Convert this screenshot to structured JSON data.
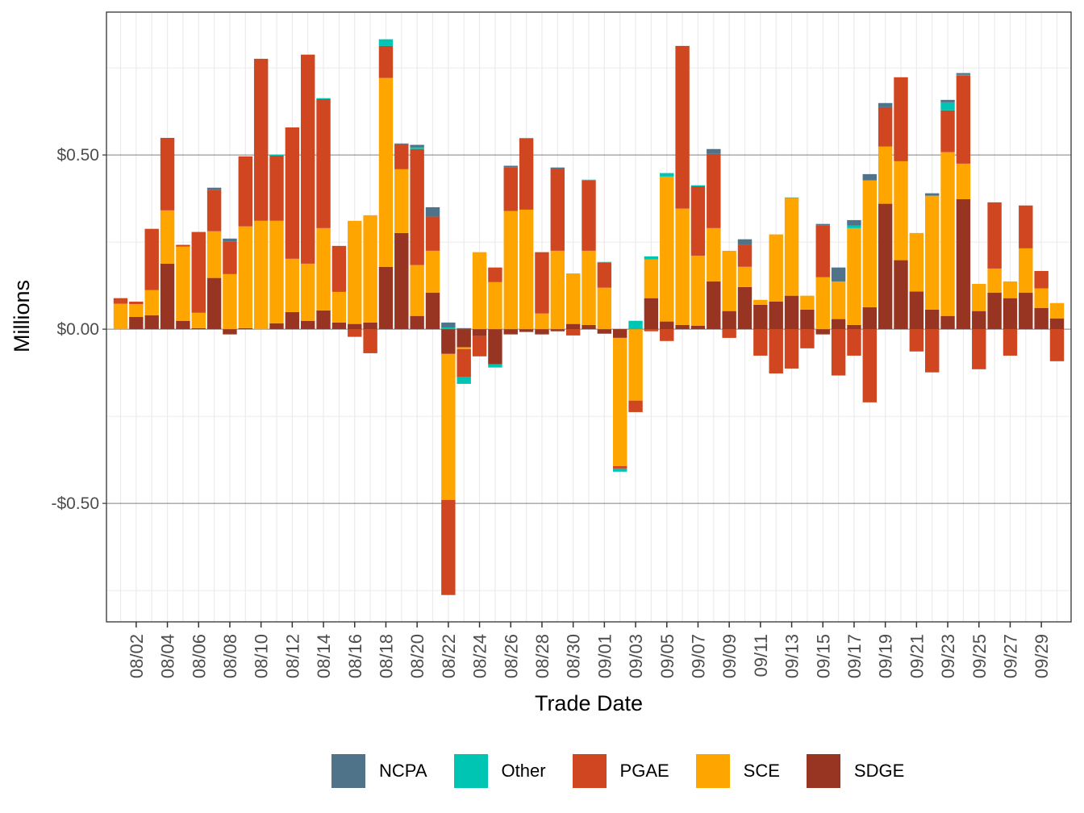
{
  "chart_data": {
    "type": "bar",
    "stacked": true,
    "xlabel": "Trade Date",
    "ylabel": "Millions",
    "ylim": [
      -0.84,
      0.91
    ],
    "yticks": [
      -0.5,
      0.0,
      0.5
    ],
    "ytick_labels": [
      "-$0.50",
      "$0.00",
      "$0.50"
    ],
    "grid": true,
    "legend_position": "bottom",
    "categories": [
      "08/01",
      "08/02",
      "08/03",
      "08/04",
      "08/05",
      "08/06",
      "08/07",
      "08/08",
      "08/09",
      "08/10",
      "08/11",
      "08/12",
      "08/13",
      "08/14",
      "08/15",
      "08/16",
      "08/17",
      "08/18",
      "08/19",
      "08/20",
      "08/21",
      "08/22",
      "08/23",
      "08/24",
      "08/25",
      "08/26",
      "08/27",
      "08/28",
      "08/29",
      "08/30",
      "08/31",
      "09/01",
      "09/02",
      "09/03",
      "09/04",
      "09/05",
      "09/06",
      "09/07",
      "09/08",
      "09/09",
      "09/10",
      "09/11",
      "09/12",
      "09/13",
      "09/14",
      "09/15",
      "09/16",
      "09/17",
      "09/18",
      "09/19",
      "09/20",
      "09/21",
      "09/22",
      "09/23",
      "09/24",
      "09/25",
      "09/26",
      "09/27",
      "09/28",
      "09/29",
      "09/30"
    ],
    "xtick_labels": [
      "08/02",
      "08/04",
      "08/06",
      "08/08",
      "08/10",
      "08/12",
      "08/14",
      "08/16",
      "08/18",
      "08/20",
      "08/22",
      "08/24",
      "08/26",
      "08/28",
      "08/30",
      "09/01",
      "09/03",
      "09/05",
      "09/07",
      "09/09",
      "09/11",
      "09/13",
      "09/15",
      "09/17",
      "09/19",
      "09/21",
      "09/23",
      "09/25",
      "09/27",
      "09/29"
    ],
    "series": [
      {
        "name": "NCPA",
        "color": "#4f7389",
        "values": [
          0,
          0,
          0,
          0,
          0,
          0,
          0.006,
          0.009,
          0,
          0,
          0,
          0,
          0,
          0,
          0,
          0,
          0,
          0,
          0.002,
          0.007,
          0.027,
          0.014,
          0.003,
          0,
          0,
          0.004,
          0,
          0,
          0.003,
          0,
          0,
          0,
          0,
          0,
          0,
          0,
          0,
          0,
          0.014,
          0,
          0.016,
          0,
          0,
          0,
          0,
          0.005,
          0.04,
          0.016,
          0.018,
          0.012,
          0,
          0,
          0.007,
          0.007,
          0.005,
          0,
          0,
          0,
          0,
          0,
          0
        ]
      },
      {
        "name": "Other",
        "color": "#00c5b2",
        "values": [
          0,
          0,
          0,
          0,
          0,
          0,
          0,
          0,
          0,
          0,
          0.003,
          0,
          0,
          0.003,
          0,
          0,
          0,
          0.019,
          0,
          0.005,
          0,
          0.005,
          -0.019,
          0,
          -0.009,
          0,
          0.002,
          0,
          0,
          0,
          0.002,
          0.002,
          -0.009,
          0.024,
          0.009,
          0.01,
          0,
          0.003,
          0,
          0,
          0,
          0,
          0,
          0.002,
          0,
          0,
          0,
          0.007,
          0,
          0,
          0,
          0,
          0,
          0.023,
          0.002,
          0,
          0,
          0,
          0,
          0,
          0
        ]
      },
      {
        "name": "PGAE",
        "color": "#d04620",
        "values": [
          0.016,
          0.007,
          0.176,
          0.208,
          0.005,
          0.232,
          0.119,
          0.093,
          0.201,
          0.465,
          0.187,
          0.377,
          0.6,
          0.37,
          0.132,
          -0.022,
          -0.069,
          0.092,
          0.072,
          0.333,
          0.098,
          -0.273,
          -0.081,
          -0.058,
          0.042,
          0.126,
          0.204,
          0.176,
          0.236,
          -0.018,
          0.202,
          0.072,
          -0.007,
          -0.033,
          -0.006,
          -0.034,
          0.467,
          0.199,
          0.213,
          -0.025,
          0.063,
          -0.076,
          -0.127,
          -0.113,
          -0.055,
          0.148,
          -0.133,
          -0.076,
          -0.21,
          0.113,
          0.241,
          -0.064,
          -0.124,
          0.12,
          0.253,
          -0.115,
          0.19,
          -0.076,
          0.123,
          0.05,
          -0.092
        ]
      },
      {
        "name": "SCE",
        "color": "#ffa500",
        "values": [
          0.073,
          0.037,
          0.072,
          0.153,
          0.213,
          0.044,
          0.134,
          0.158,
          0.292,
          0.311,
          0.294,
          0.153,
          0.164,
          0.236,
          0.088,
          0.296,
          0.308,
          0.542,
          0.183,
          0.146,
          0.12,
          -0.419,
          -0.005,
          0.221,
          0.135,
          0.339,
          0.343,
          0.045,
          0.225,
          0.145,
          0.213,
          0.119,
          -0.368,
          -0.205,
          0.111,
          0.416,
          0.334,
          0.201,
          0.153,
          0.173,
          0.058,
          0.014,
          0.193,
          0.28,
          0.04,
          0.149,
          0.108,
          0.278,
          0.364,
          0.164,
          0.284,
          0.168,
          0.327,
          0.47,
          0.102,
          0.078,
          0.069,
          0.048,
          0.127,
          0.056,
          0.044
        ]
      },
      {
        "name": "SDGE",
        "color": "#983522",
        "values": [
          0,
          0.035,
          0.04,
          0.188,
          0.024,
          0.003,
          0.147,
          -0.015,
          0.003,
          0,
          0.017,
          0.049,
          0.024,
          0.054,
          0.019,
          0.015,
          0.019,
          0.179,
          0.276,
          0.038,
          0.105,
          -0.071,
          -0.052,
          -0.02,
          -0.101,
          -0.015,
          -0.008,
          -0.015,
          -0.006,
          0.015,
          0.012,
          -0.013,
          -0.025,
          0,
          0.089,
          0.022,
          0.012,
          0.01,
          0.137,
          0.052,
          0.121,
          0.07,
          0.079,
          0.096,
          0.056,
          -0.015,
          0.029,
          0.012,
          0.063,
          0.36,
          0.198,
          0.108,
          0.056,
          0.038,
          0.373,
          0.052,
          0.105,
          0.089,
          0.105,
          0.061,
          0.031
        ]
      }
    ]
  }
}
